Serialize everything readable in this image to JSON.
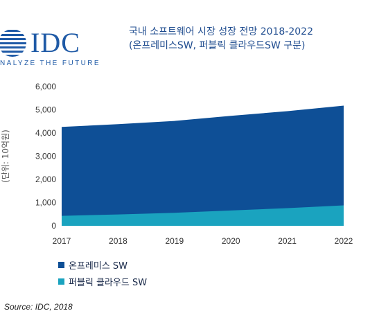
{
  "brand": {
    "logo_text": "IDC",
    "tagline": "NALYZE THE FUTURE",
    "color": "#1f5aa6"
  },
  "chart_data": {
    "type": "area",
    "title": "국내 소프트웨어 시장 성장 전망 2018-2022",
    "subtitle": "(온프레미스SW, 퍼블릭 클라우드SW 구분)",
    "ylabel": "(단위: 10억원)",
    "xlabel": "",
    "x": [
      "2017",
      "2018",
      "2019",
      "2020",
      "2021",
      "2022"
    ],
    "ylim": [
      0,
      6000
    ],
    "yticks": [
      "0",
      "1,000",
      "2,000",
      "3,000",
      "4,000",
      "5,000",
      "6,000"
    ],
    "ytick_values": [
      0,
      1000,
      2000,
      3000,
      4000,
      5000,
      6000
    ],
    "stacked": true,
    "grid": false,
    "legend_position": "bottom-left",
    "series": [
      {
        "name": "온프레미스 SW",
        "values": [
          3830,
          3890,
          3960,
          4080,
          4180,
          4300
        ],
        "color": "#0e4f96"
      },
      {
        "name": "퍼블릭 클라우드 SW",
        "values": [
          430,
          490,
          560,
          660,
          760,
          880
        ],
        "color": "#1aa3bf"
      }
    ],
    "source": "Source: IDC, 2018"
  }
}
